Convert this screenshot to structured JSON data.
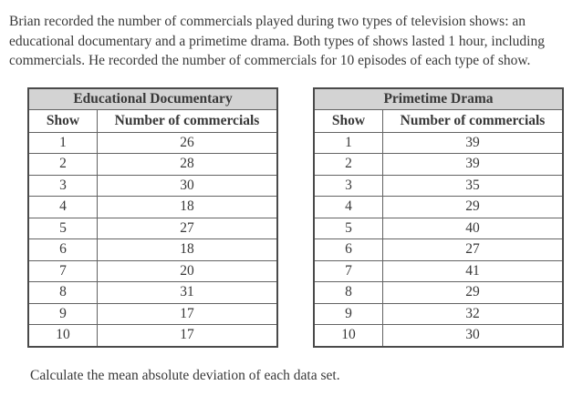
{
  "intro": {
    "lines": [
      "Brian recorded the number of commercials played during two types of television shows: an",
      "educational documentary and a primetime drama. Both types of shows lasted 1 hour, including",
      "commercials. He recorded the number of commercials for 10 episodes of each type of show."
    ]
  },
  "tables": [
    {
      "title": "Educational Documentary",
      "columns": [
        "Show",
        "Number of commercials"
      ],
      "rows": [
        [
          "1",
          "26"
        ],
        [
          "2",
          "28"
        ],
        [
          "3",
          "30"
        ],
        [
          "4",
          "18"
        ],
        [
          "5",
          "27"
        ],
        [
          "6",
          "18"
        ],
        [
          "7",
          "20"
        ],
        [
          "8",
          "31"
        ],
        [
          "9",
          "17"
        ],
        [
          "10",
          "17"
        ]
      ]
    },
    {
      "title": "Primetime Drama",
      "columns": [
        "Show",
        "Number of commercials"
      ],
      "rows": [
        [
          "1",
          "39"
        ],
        [
          "2",
          "39"
        ],
        [
          "3",
          "35"
        ],
        [
          "4",
          "29"
        ],
        [
          "5",
          "40"
        ],
        [
          "6",
          "27"
        ],
        [
          "7",
          "41"
        ],
        [
          "8",
          "29"
        ],
        [
          "9",
          "32"
        ],
        [
          "10",
          "30"
        ]
      ]
    }
  ],
  "question": "Calculate the mean absolute deviation of each data set.",
  "colors": {
    "header_bg": "#d3d3d3",
    "outer_border": "#4a4a4a",
    "inner_border": "#636363",
    "text": "#383838"
  }
}
